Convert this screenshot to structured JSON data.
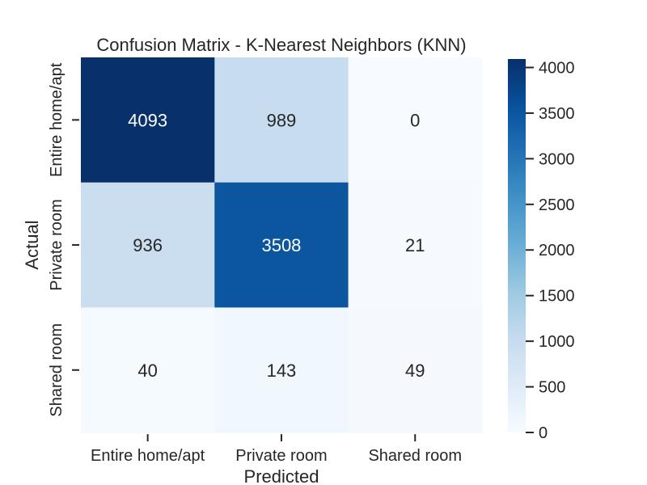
{
  "chart_data": {
    "type": "heatmap",
    "title": "Confusion Matrix - K-Nearest Neighbors (KNN)",
    "xlabel": "Predicted",
    "ylabel": "Actual",
    "x_categories": [
      "Entire home/apt",
      "Private room",
      "Shared room"
    ],
    "y_categories": [
      "Entire home/apt",
      "Private room",
      "Shared room"
    ],
    "values": [
      [
        4093,
        989,
        0
      ],
      [
        936,
        3508,
        21
      ],
      [
        40,
        143,
        49
      ]
    ],
    "colormap": "Blues",
    "color_range": [
      0,
      4093
    ],
    "colorbar_ticks": [
      0,
      500,
      1000,
      1500,
      2000,
      2500,
      3000,
      3500,
      4000
    ],
    "colorbar_tick_labels": [
      "0",
      "500",
      "1000",
      "1500",
      "2000",
      "2500",
      "3000",
      "3500",
      "4000"
    ],
    "grid": false,
    "colorbar_position": "right"
  }
}
